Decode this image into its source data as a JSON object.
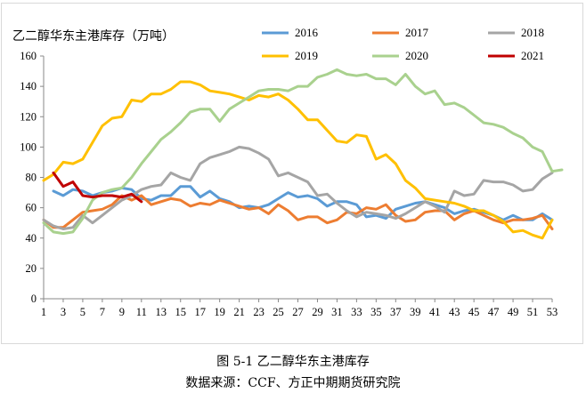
{
  "chart_data": {
    "type": "line",
    "title": "乙二醇华东主港库存（万吨）",
    "xlabel": "",
    "ylabel": "",
    "ylim": [
      0,
      160
    ],
    "yticks": [
      0,
      20,
      40,
      60,
      80,
      100,
      120,
      140,
      160
    ],
    "xlim": [
      1,
      53
    ],
    "xticks": [
      1,
      3,
      5,
      7,
      9,
      11,
      13,
      15,
      17,
      19,
      21,
      23,
      25,
      27,
      29,
      31,
      33,
      35,
      37,
      39,
      41,
      43,
      45,
      47,
      49,
      51,
      53
    ],
    "grid": false,
    "legend_position": "top-right",
    "series": [
      {
        "name": "2016",
        "color": "#5b9bd5",
        "values": [
          null,
          71,
          68,
          72,
          71,
          68,
          70,
          71,
          73,
          72,
          66,
          65,
          68,
          68,
          74,
          74,
          67,
          71,
          66,
          64,
          60,
          61,
          60,
          62,
          66,
          70,
          67,
          68,
          66,
          61,
          64,
          64,
          62,
          54,
          55,
          53,
          59,
          61,
          63,
          64,
          62,
          60,
          56,
          58,
          59,
          57,
          55,
          52,
          55,
          52,
          52,
          56,
          52
        ]
      },
      {
        "name": "2017",
        "color": "#ed7d31",
        "values": [
          52,
          47,
          47,
          52,
          57,
          58,
          59,
          62,
          68,
          65,
          68,
          62,
          64,
          66,
          65,
          61,
          63,
          62,
          65,
          63,
          61,
          59,
          60,
          56,
          62,
          58,
          52,
          54,
          54,
          50,
          52,
          57,
          56,
          60,
          59,
          62,
          55,
          51,
          52,
          57,
          58,
          58,
          52,
          56,
          58,
          55,
          52,
          50,
          52,
          52,
          53,
          55,
          46
        ]
      },
      {
        "name": "2018",
        "color": "#a5a5a5",
        "values": [
          52,
          48,
          46,
          47,
          55,
          50,
          55,
          60,
          65,
          68,
          72,
          74,
          75,
          83,
          80,
          78,
          89,
          93,
          95,
          97,
          100,
          99,
          96,
          92,
          81,
          83,
          80,
          77,
          68,
          69,
          63,
          58,
          54,
          57,
          56,
          55,
          53,
          56,
          60,
          64,
          61,
          57,
          71,
          68,
          69,
          78,
          77,
          77,
          75,
          71,
          72,
          79,
          83
        ]
      },
      {
        "name": "2019",
        "color": "#ffc000",
        "values": [
          78,
          82,
          90,
          89,
          92,
          103,
          114,
          119,
          120,
          131,
          130,
          135,
          135,
          138,
          143,
          143,
          141,
          137,
          136,
          135,
          133,
          131,
          134,
          133,
          135,
          131,
          125,
          118,
          118,
          111,
          104,
          103,
          108,
          107,
          92,
          95,
          89,
          78,
          73,
          66,
          65,
          64,
          63,
          61,
          58,
          58,
          55,
          51,
          44,
          45,
          42,
          40,
          52
        ]
      },
      {
        "name": "2020",
        "color": "#a9d18e",
        "values": [
          50,
          44,
          43,
          44,
          53,
          65,
          70,
          72,
          73,
          80,
          89,
          97,
          105,
          110,
          116,
          123,
          125,
          125,
          117,
          125,
          129,
          133,
          137,
          138,
          138,
          137,
          140,
          140,
          146,
          148,
          151,
          148,
          147,
          148,
          145,
          145,
          141,
          148,
          140,
          135,
          137,
          128,
          129,
          126,
          121,
          116,
          115,
          113,
          109,
          106,
          100,
          97,
          84,
          85
        ]
      },
      {
        "name": "2021",
        "color": "#c00000",
        "values": [
          null,
          83,
          74,
          77,
          68,
          67,
          68,
          68,
          67,
          69,
          64
        ]
      }
    ]
  },
  "caption": {
    "figure": "图 5-1  乙二醇华东主港库存",
    "source": "数据来源：CCF、方正中期期货研究院"
  }
}
